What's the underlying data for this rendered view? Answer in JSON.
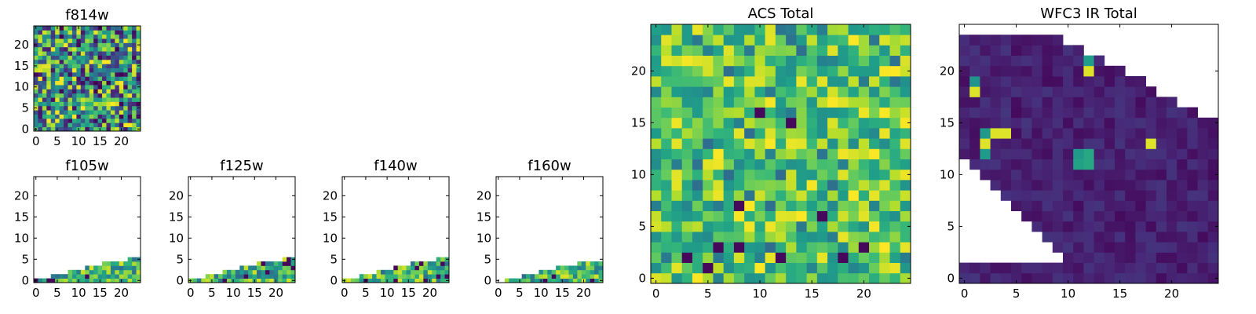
{
  "chart_data": [
    {
      "type": "heatmap",
      "title": "f814w",
      "xlabel": "",
      "ylabel": "",
      "xlim": [
        0,
        25
      ],
      "ylim": [
        0,
        25
      ],
      "xticks": [
        "0",
        "5",
        "10",
        "15",
        "20"
      ],
      "yticks": [
        "0",
        "5",
        "10",
        "15",
        "20"
      ],
      "colormap": "viridis",
      "coverage": "full grid, random noise"
    },
    {
      "type": "heatmap",
      "title": "f105w",
      "xlabel": "",
      "ylabel": "",
      "xlim": [
        0,
        25
      ],
      "ylim": [
        0,
        25
      ],
      "xticks": [
        "0",
        "5",
        "10",
        "15",
        "20"
      ],
      "yticks": [
        "0",
        "5",
        "10",
        "15",
        "20"
      ],
      "colormap": "viridis",
      "coverage": "bottom wedge only",
      "top_row_profile": [
        [
          0,
          1
        ],
        [
          4,
          2
        ],
        [
          8,
          3
        ],
        [
          12,
          4
        ],
        [
          16,
          5
        ],
        [
          20,
          5
        ],
        [
          22,
          6
        ],
        [
          25,
          6
        ]
      ]
    },
    {
      "type": "heatmap",
      "title": "f125w",
      "xlabel": "",
      "ylabel": "",
      "xlim": [
        0,
        25
      ],
      "ylim": [
        0,
        25
      ],
      "xticks": [
        "0",
        "5",
        "10",
        "15",
        "20"
      ],
      "yticks": [
        "0",
        "5",
        "10",
        "15",
        "20"
      ],
      "colormap": "viridis",
      "coverage": "bottom wedge only",
      "top_row_profile": [
        [
          0,
          1
        ],
        [
          4,
          2
        ],
        [
          8,
          3
        ],
        [
          12,
          4
        ],
        [
          16,
          5
        ],
        [
          20,
          5
        ],
        [
          22,
          6
        ],
        [
          25,
          6
        ]
      ]
    },
    {
      "type": "heatmap",
      "title": "f140w",
      "xlabel": "",
      "ylabel": "",
      "xlim": [
        0,
        25
      ],
      "ylim": [
        0,
        25
      ],
      "xticks": [
        "0",
        "5",
        "10",
        "15",
        "20"
      ],
      "yticks": [
        "0",
        "5",
        "10",
        "15",
        "20"
      ],
      "colormap": "viridis",
      "coverage": "bottom wedge only",
      "top_row_profile": [
        [
          0,
          1
        ],
        [
          4,
          2
        ],
        [
          8,
          3
        ],
        [
          12,
          4
        ],
        [
          16,
          5
        ],
        [
          20,
          5
        ],
        [
          22,
          6
        ],
        [
          25,
          6
        ]
      ]
    },
    {
      "type": "heatmap",
      "title": "f160w",
      "xlabel": "",
      "ylabel": "",
      "xlim": [
        0,
        25
      ],
      "ylim": [
        0,
        25
      ],
      "xticks": [
        "0",
        "5",
        "10",
        "15",
        "20"
      ],
      "yticks": [
        "0",
        "5",
        "10",
        "15",
        "20"
      ],
      "colormap": "viridis",
      "coverage": "bottom wedge only",
      "top_row_profile": [
        [
          0,
          0
        ],
        [
          2,
          1
        ],
        [
          6,
          2
        ],
        [
          10,
          3
        ],
        [
          14,
          4
        ],
        [
          19,
          5
        ],
        [
          25,
          5
        ]
      ]
    },
    {
      "type": "heatmap",
      "title": "ACS Total",
      "xlabel": "",
      "ylabel": "",
      "xlim": [
        0,
        25
      ],
      "ylim": [
        0,
        25
      ],
      "xticks": [
        "0",
        "5",
        "10",
        "15",
        "20"
      ],
      "yticks": [
        "0",
        "5",
        "10",
        "15",
        "20"
      ],
      "colormap": "viridis",
      "coverage": "full grid, mostly green-yellow with scattered dark cells",
      "dark_cells": [
        [
          3,
          2
        ],
        [
          6,
          3
        ],
        [
          8,
          3
        ],
        [
          5,
          1
        ],
        [
          12,
          2
        ],
        [
          16,
          6
        ],
        [
          18,
          2
        ],
        [
          20,
          3
        ],
        [
          13,
          15
        ],
        [
          8,
          7
        ],
        [
          10,
          16
        ]
      ]
    },
    {
      "type": "heatmap",
      "title": "WFC3 IR Total",
      "xlabel": "",
      "ylabel": "",
      "xlim": [
        0,
        25
      ],
      "ylim": [
        0,
        25
      ],
      "xticks": [
        "0",
        "5",
        "10",
        "15",
        "20"
      ],
      "yticks": [
        "0",
        "5",
        "10",
        "15",
        "20"
      ],
      "colormap": "viridis",
      "coverage": "mostly dark purple, blank regions at top-right and left",
      "bright_cells": [
        [
          1,
          18
        ],
        [
          3,
          14
        ],
        [
          4,
          14
        ],
        [
          2,
          13
        ],
        [
          12,
          20
        ],
        [
          18,
          13
        ]
      ],
      "mid_cells": [
        [
          1,
          19
        ],
        [
          2,
          14
        ],
        [
          11,
          12
        ],
        [
          12,
          12
        ],
        [
          11,
          11
        ],
        [
          12,
          11
        ],
        [
          2,
          12
        ],
        [
          12,
          21
        ]
      ]
    }
  ]
}
